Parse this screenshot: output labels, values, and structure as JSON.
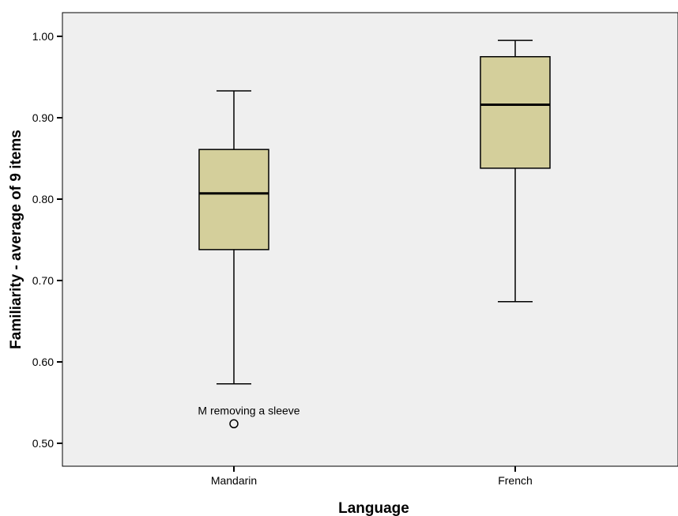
{
  "chart_data": {
    "type": "boxplot",
    "xlabel": "Language",
    "ylabel": "Familiarity - average of 9 items",
    "ylim": [
      0.485,
      1.03
    ],
    "yticks": [
      0.5,
      0.6,
      0.7,
      0.8,
      0.9,
      1.0
    ],
    "ytick_labels": [
      "0.50",
      "0.60",
      "0.70",
      "0.80",
      "0.90",
      "1.00"
    ],
    "grid": false,
    "colors": {
      "box_fill": "#d4cf9b",
      "plot_bg": "#efefef",
      "stroke": "#000000"
    },
    "categories": [
      "Mandarin",
      "French"
    ],
    "boxes": [
      {
        "category": "Mandarin",
        "whisker_low": 0.573,
        "q1": 0.738,
        "median": 0.807,
        "q3": 0.861,
        "whisker_high": 0.933,
        "outliers": [
          {
            "value": 0.524,
            "label": "M removing a sleeve"
          }
        ]
      },
      {
        "category": "French",
        "whisker_low": 0.674,
        "q1": 0.838,
        "median": 0.916,
        "q3": 0.975,
        "whisker_high": 0.995,
        "outliers": []
      }
    ]
  }
}
